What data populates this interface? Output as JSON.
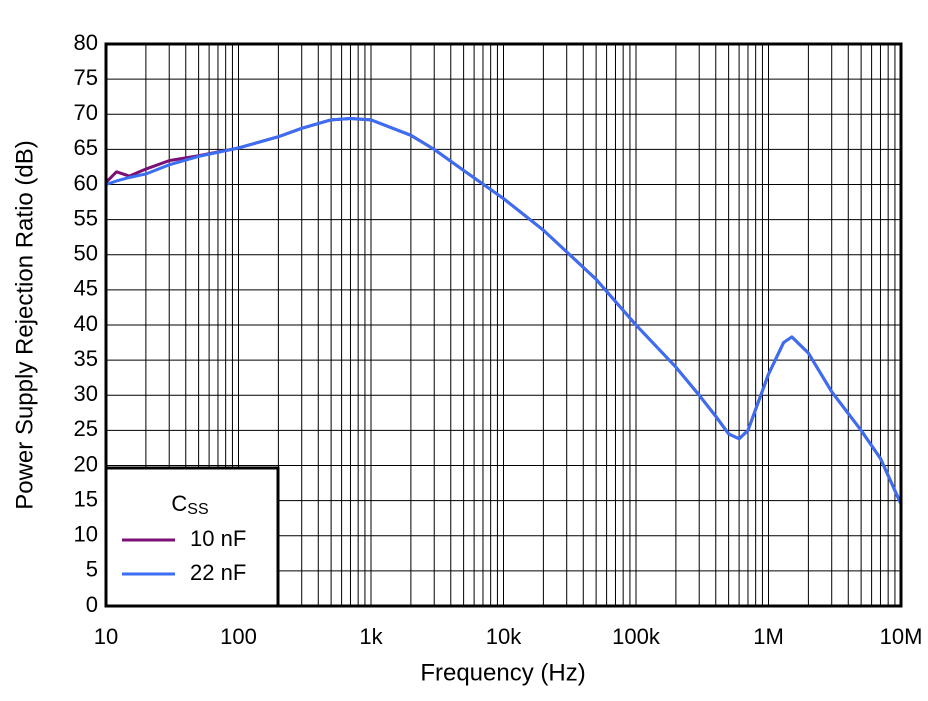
{
  "chart_data": {
    "type": "line",
    "xlabel": "Frequency (Hz)",
    "ylabel": "Power Supply Rejection Ratio (dB)",
    "legend_title": "C",
    "legend_title_sub": "SS",
    "legend_loc": "lower left",
    "xscale": "log",
    "grid": true,
    "minor_grid": true,
    "xlim": [
      10,
      10000000
    ],
    "ylim": [
      0,
      80
    ],
    "xticks": [
      10,
      100,
      {
        "value": 1000,
        "label": "1k"
      },
      {
        "value": 10000,
        "label": "10k"
      },
      {
        "value": 100000,
        "label": "100k"
      },
      {
        "value": 1000000,
        "label": "1M"
      },
      {
        "value": 10000000,
        "label": "10M"
      }
    ],
    "yticks": [
      0,
      5,
      10,
      15,
      20,
      25,
      30,
      35,
      40,
      45,
      50,
      55,
      60,
      65,
      70,
      75,
      80
    ],
    "x": [
      10,
      12,
      15,
      20,
      30,
      50,
      100,
      200,
      300,
      500,
      700,
      1000,
      2000,
      3000,
      5000,
      10000,
      20000,
      50000,
      100000,
      200000,
      300000,
      400000,
      500000,
      600000,
      700000,
      800000,
      1000000,
      1300000,
      1500000,
      2000000,
      3000000,
      5000000,
      7000000,
      10000000
    ],
    "series": [
      {
        "name": "10 nF",
        "color": "#7a1075",
        "values": [
          60.3,
          61.8,
          61.2,
          62.2,
          63.4,
          64.1,
          65.2,
          66.8,
          68,
          69.2,
          69.4,
          69.2,
          67,
          65,
          62,
          58,
          53.5,
          46.5,
          40,
          34,
          30,
          27,
          24.5,
          23.8,
          25,
          28,
          33,
          37.5,
          38.3,
          36,
          30.5,
          25,
          21,
          14.5
        ]
      },
      {
        "name": "22 nF",
        "color": "#3b6ef2",
        "values": [
          60,
          60.5,
          61,
          61.5,
          62.8,
          64,
          65.2,
          66.8,
          68,
          69.2,
          69.4,
          69.2,
          67,
          65,
          62,
          58,
          53.5,
          46.5,
          40,
          34,
          30,
          27,
          24.5,
          23.8,
          25,
          28,
          33,
          37.5,
          38.3,
          36,
          30.5,
          25,
          21,
          14.5
        ]
      }
    ]
  }
}
